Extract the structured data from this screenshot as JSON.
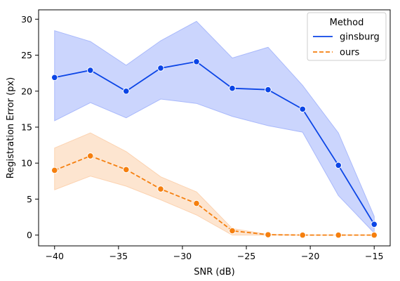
{
  "chart_data": {
    "type": "line",
    "xlabel": "SNR (dB)",
    "ylabel": "Registration Error (px)",
    "xlim": [
      -41.25,
      -13.75
    ],
    "ylim": [
      -1.5,
      31.3
    ],
    "xticks": [
      -40,
      -35,
      -30,
      -25,
      -20,
      -15
    ],
    "yticks": [
      0,
      5,
      10,
      15,
      20,
      25,
      30
    ],
    "xtick_labels": [
      "−40",
      "−35",
      "−30",
      "−25",
      "−20",
      "−15"
    ],
    "ytick_labels": [
      "0",
      "5",
      "10",
      "15",
      "20",
      "25",
      "30"
    ],
    "grid": false,
    "legend": {
      "title": "Method",
      "placement": "top-right"
    },
    "series": [
      {
        "name": "ginsburg",
        "color": "#0b45e6",
        "band_color": "#a9b9fb",
        "linestyle": "solid",
        "x": [
          -40.0,
          -37.2,
          -34.4,
          -31.7,
          -28.9,
          -26.1,
          -23.3,
          -20.6,
          -17.8,
          -15.0
        ],
        "y": [
          21.9,
          22.9,
          20.0,
          23.2,
          24.1,
          20.4,
          20.2,
          17.5,
          9.7,
          1.5
        ],
        "lower": [
          15.9,
          18.4,
          16.3,
          18.9,
          18.3,
          16.5,
          15.2,
          14.3,
          5.5,
          0.3
        ],
        "upper": [
          28.4,
          26.9,
          23.6,
          27.0,
          29.7,
          24.6,
          26.1,
          20.8,
          14.2,
          2.6
        ]
      },
      {
        "name": "ours",
        "color": "#f57f0e",
        "band_color": "#fcd3b1",
        "linestyle": "dashed",
        "x": [
          -40.0,
          -37.2,
          -34.4,
          -31.7,
          -28.9,
          -26.1,
          -23.3,
          -20.6,
          -17.8,
          -15.0
        ],
        "y": [
          9.0,
          11.0,
          9.1,
          6.4,
          4.4,
          0.6,
          0.05,
          0.0,
          0.0,
          0.0
        ],
        "lower": [
          6.3,
          8.2,
          6.8,
          4.9,
          2.8,
          0.0,
          0.0,
          0.0,
          0.0,
          0.0
        ],
        "upper": [
          12.1,
          14.2,
          11.6,
          8.1,
          6.0,
          0.9,
          0.1,
          0.0,
          0.0,
          0.0
        ]
      }
    ]
  }
}
